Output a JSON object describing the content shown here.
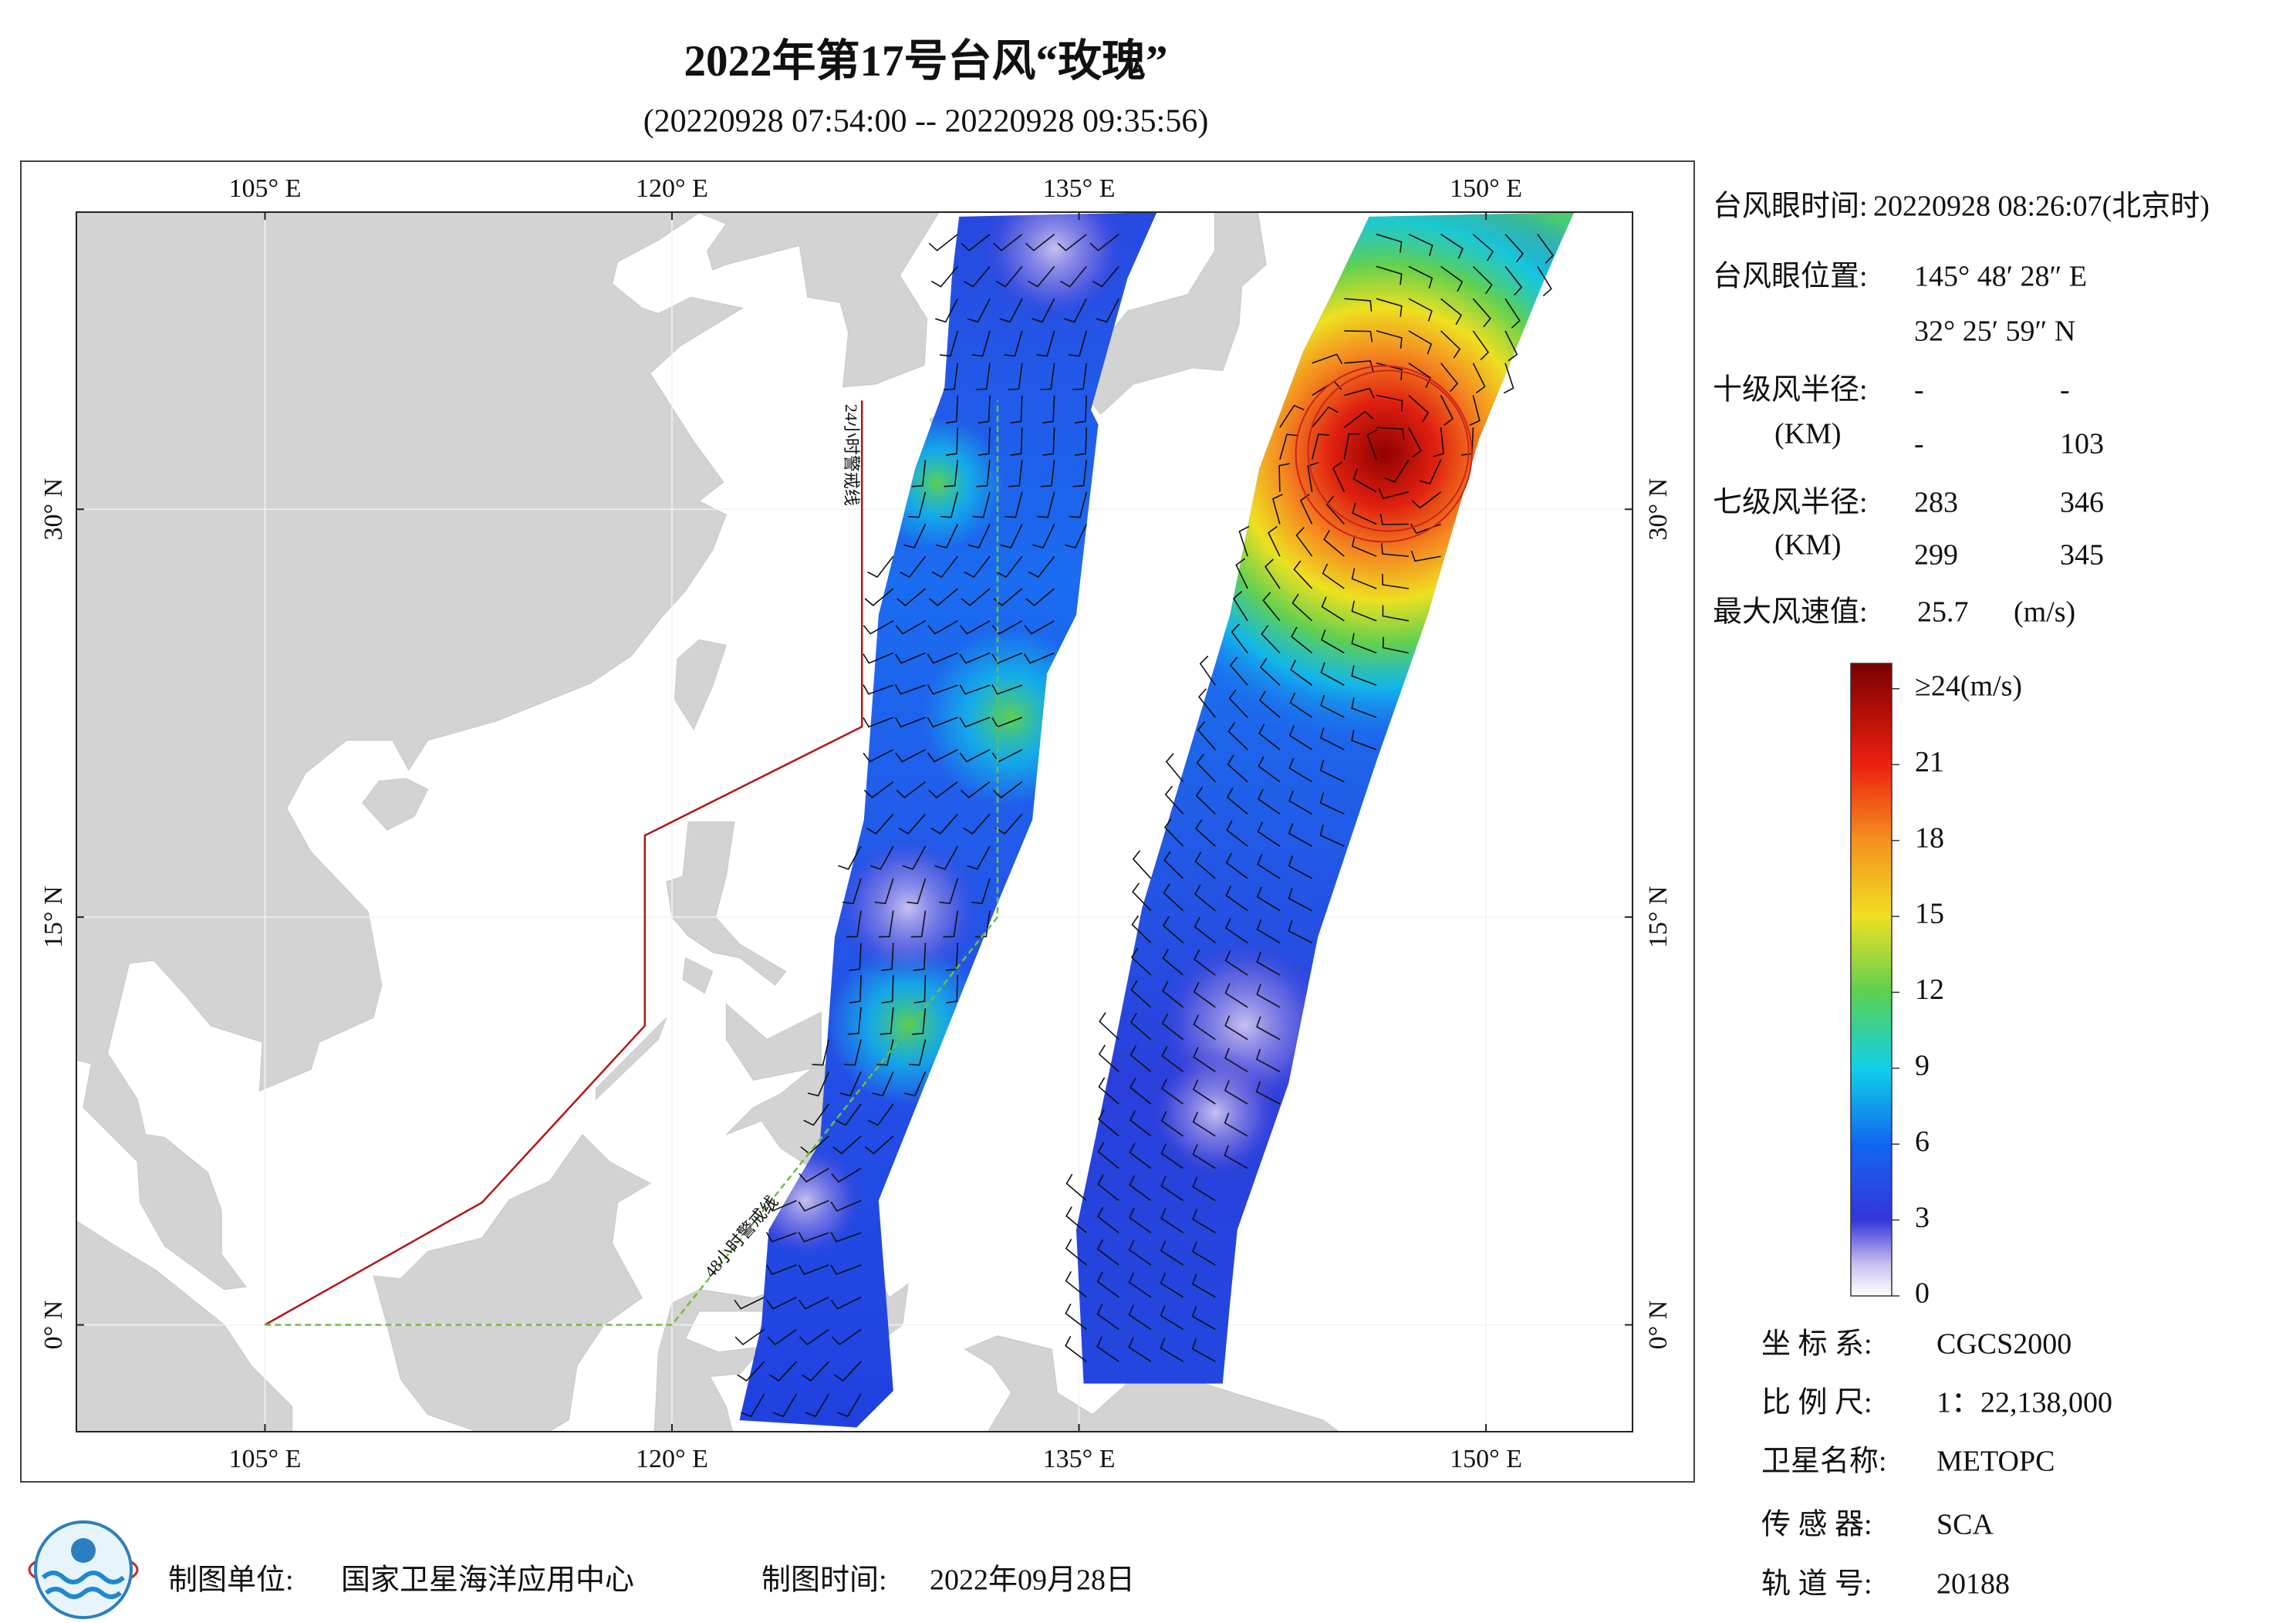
{
  "chart_data": {
    "type": "map",
    "title": "2022年第17号台风“玫瑰”",
    "subtitle": "(20220928 07:54:00 -- 20220928 09:35:56)",
    "xlim": [
      98.05,
      155.4
    ],
    "ylim": [
      -3.93,
      40.93
    ],
    "xticks": [
      {
        "value": 105,
        "label": "105° E"
      },
      {
        "value": 120,
        "label": "120° E"
      },
      {
        "value": 135,
        "label": "135° E"
      },
      {
        "value": 150,
        "label": "150° E"
      }
    ],
    "yticks": [
      {
        "value": 0,
        "label": "0° N"
      },
      {
        "value": 15,
        "label": "15° N"
      },
      {
        "value": 30,
        "label": "30° N"
      }
    ],
    "grid": true,
    "annotations": [
      "24小时警戒线",
      "48小时警戒线"
    ],
    "colorbar": {
      "lim": [
        0,
        25
      ],
      "ticks": [
        0,
        3,
        6,
        9,
        12,
        15,
        18,
        21,
        {
          "value": 24,
          "label": "≥24(m/s)"
        }
      ]
    }
  },
  "info": {
    "eye_time": {
      "label": "台风眼时间:",
      "value": "20220928 08:26:07(北京时)"
    },
    "eye_position": {
      "label": "台风眼位置:",
      "lon": "145° 48′ 28″ E",
      "lat": "32° 25′ 59″ N"
    },
    "storm_radius": {
      "label": "十级风半径:",
      "unit": "(KM)",
      "rows": [
        [
          "-",
          "-"
        ],
        [
          "-",
          103
        ]
      ]
    },
    "gale_radius": {
      "label": "七级风半径:",
      "unit": "(KM)",
      "rows": [
        [
          283,
          346
        ],
        [
          299,
          345
        ]
      ]
    },
    "max_wind": {
      "label": "最大风速值:",
      "value": 25.7,
      "unit": "(m/s)"
    }
  },
  "meta": [
    {
      "label": "坐 标 系:",
      "value": "CGCS2000"
    },
    {
      "label": "比 例 尺:",
      "value": "1：22,138,000"
    },
    {
      "label": "卫星名称:",
      "value": "METOPC"
    },
    {
      "label": "传 感 器:",
      "value": "SCA"
    },
    {
      "label": "轨 道 号:",
      "value": 20188
    }
  ],
  "footer": {
    "unit_label": "制图单位:",
    "unit": "国家卫星海洋应用中心",
    "time_label": "制图时间:",
    "time": "2022年09月28日"
  }
}
